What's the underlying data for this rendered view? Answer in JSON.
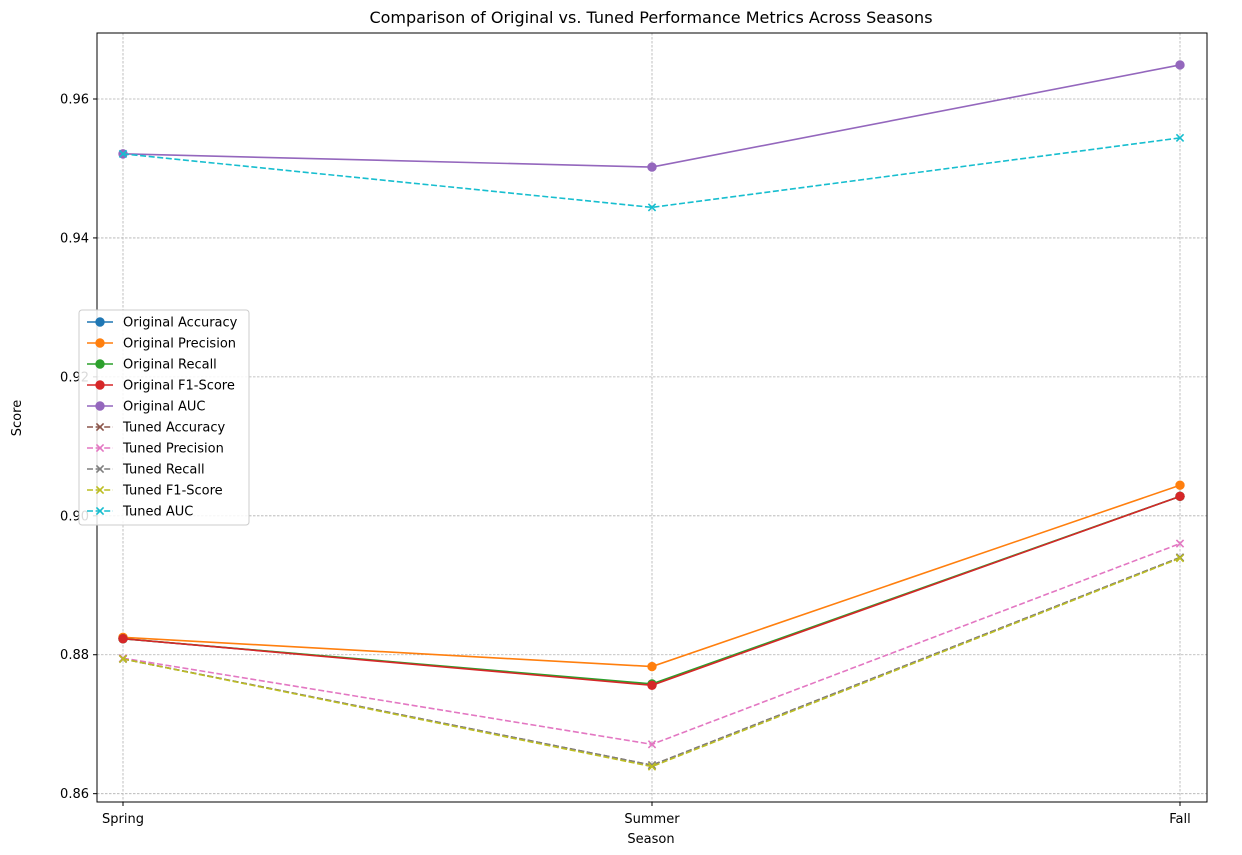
{
  "chart_data": {
    "type": "line",
    "title": "Comparison of Original vs. Tuned Performance Metrics Across Seasons",
    "xlabel": "Season",
    "ylabel": "Score",
    "categories": [
      "Spring",
      "Summer",
      "Fall"
    ],
    "ylim": [
      0.8588,
      0.9695
    ],
    "yticks": [
      0.86,
      0.88,
      0.9,
      0.92,
      0.94,
      0.96
    ],
    "ytick_labels": [
      "0.86",
      "0.88",
      "0.90",
      "0.92",
      "0.94",
      "0.96"
    ],
    "grid": true,
    "legend_position": "center-left",
    "series": [
      {
        "name": "Original Accuracy",
        "values": [
          0.8823,
          0.8757,
          0.9028
        ],
        "color": "#1f77b4",
        "style": "solid",
        "marker": "circle"
      },
      {
        "name": "Original Precision",
        "values": [
          0.8825,
          0.8783,
          0.9044
        ],
        "color": "#ff7f0e",
        "style": "solid",
        "marker": "circle"
      },
      {
        "name": "Original Recall",
        "values": [
          0.8823,
          0.8758,
          0.9028
        ],
        "color": "#2ca02c",
        "style": "solid",
        "marker": "circle"
      },
      {
        "name": "Original F1-Score",
        "values": [
          0.8823,
          0.8756,
          0.9028
        ],
        "color": "#d62728",
        "style": "solid",
        "marker": "circle"
      },
      {
        "name": "Original AUC",
        "values": [
          0.9521,
          0.9502,
          0.9649
        ],
        "color": "#9467bd",
        "style": "solid",
        "marker": "circle"
      },
      {
        "name": "Tuned Accuracy",
        "values": [
          0.8794,
          0.8641,
          0.894
        ],
        "color": "#8c564b",
        "style": "dashed",
        "marker": "x"
      },
      {
        "name": "Tuned Precision",
        "values": [
          0.8795,
          0.8671,
          0.896
        ],
        "color": "#e377c2",
        "style": "dashed",
        "marker": "x"
      },
      {
        "name": "Tuned Recall",
        "values": [
          0.8794,
          0.8641,
          0.894
        ],
        "color": "#7f7f7f",
        "style": "dashed",
        "marker": "x"
      },
      {
        "name": "Tuned F1-Score",
        "values": [
          0.8794,
          0.8639,
          0.8939
        ],
        "color": "#bcbd22",
        "style": "dashed",
        "marker": "x"
      },
      {
        "name": "Tuned AUC",
        "values": [
          0.9521,
          0.9444,
          0.9544
        ],
        "color": "#17becf",
        "style": "dashed",
        "marker": "x"
      }
    ]
  }
}
